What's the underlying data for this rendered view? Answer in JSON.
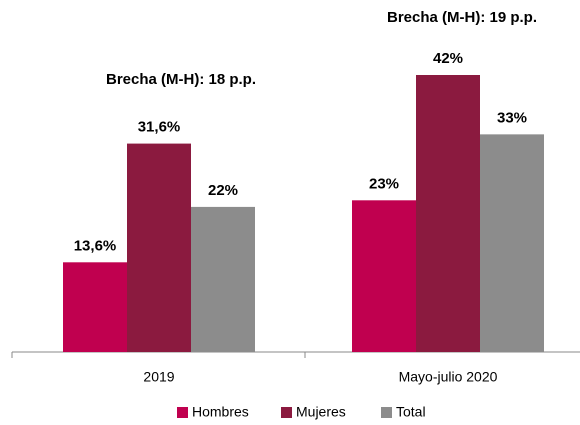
{
  "chart_data": {
    "type": "bar",
    "categories": [
      "2019",
      "Mayo-julio 2020"
    ],
    "series": [
      {
        "name": "Hombres",
        "color": "#c0004f",
        "values": [
          13.6,
          23
        ],
        "value_labels": [
          "13,6%",
          "23%"
        ]
      },
      {
        "name": "Mujeres",
        "color": "#8b1a3f",
        "values": [
          31.6,
          42
        ],
        "value_labels": [
          "31,6%",
          "42%"
        ]
      },
      {
        "name": "Total",
        "color": "#8c8c8c",
        "values": [
          22,
          33
        ],
        "value_labels": [
          "22%",
          "33%"
        ]
      }
    ],
    "annotations": [
      "Brecha (M-H): 18 p.p.",
      "Brecha (M-H): 19 p.p."
    ],
    "legend": "bottom"
  }
}
